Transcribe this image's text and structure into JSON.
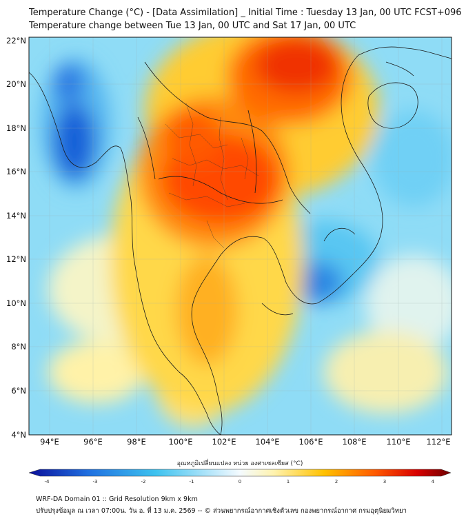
{
  "title_line1": "Temperature Change (°C) - [Data Assimilation] _ Initial Time : Tuesday 13 Jan, 00 UTC FCST+096",
  "title_line2": "Temperature change between Tue 13 Jan, 00 UTC and Sat 17 Jan, 00 UTC",
  "lat_labels": [
    "22°N",
    "20°N",
    "18°N",
    "16°N",
    "14°N",
    "12°N",
    "10°N",
    "8°N",
    "6°N",
    "4°N"
  ],
  "lon_labels": [
    "94°E",
    "96°E",
    "98°E",
    "100°E",
    "102°E",
    "104°E",
    "106°E",
    "108°E",
    "110°E",
    "112°E"
  ],
  "colorbar": {
    "title": "อุณหภูมิเปลี่ยนแปลง หน่วย องศาเซลเซียส (°C)",
    "ticks": [
      "-4",
      "-3",
      "-2",
      "-1",
      "0",
      "1",
      "2",
      "3",
      "4"
    ],
    "min": -4,
    "max": 4
  },
  "footer_line1": "WRF-DA Domain 01 :: Grid Resolution 9km x 9km",
  "footer_line2": "ปรับปรุงข้อมูล ณ เวลา 07:00น. วัน อ. ที่ 13 ม.ค. 2569 -- © ส่วนพยากรณ์อากาศเชิงตัวเลข กองพยากรณ์อากาศ กรมอุตุนิยมวิทยา",
  "colors": {
    "cold_deep": "#0a0f9a",
    "cold": "#1f6fe0",
    "cool": "#3dc2ef",
    "near_zero": "#e8f6ff",
    "warm_light": "#fff0a0",
    "warm": "#ffc100",
    "hot": "#ff5a00",
    "hot_deep": "#d80000",
    "extreme": "#6e0000"
  }
}
